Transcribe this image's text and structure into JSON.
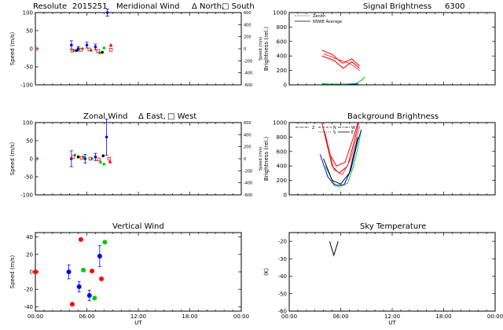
{
  "figure_title": {
    "station": "Resolute",
    "date": "2015251",
    "wavelength": "6300"
  },
  "chart_data": [
    {
      "id": "meridional",
      "type": "scatter",
      "title": "Meridional Wind",
      "legend_text": [
        "Δ North,",
        "□ South"
      ],
      "ylabel": "Speed (m/s)",
      "ylabel_right": "Speed (m/s)",
      "xlabel": "",
      "xlim": [
        0,
        24
      ],
      "ylim": [
        -100,
        100
      ],
      "yticks": [
        -100,
        -50,
        0,
        50,
        100
      ],
      "ylim_right": [
        -600,
        600
      ],
      "yticks_right": [
        -600,
        -400,
        -200,
        0,
        200,
        400,
        600
      ],
      "xticks": [
        0,
        6,
        12,
        18,
        24
      ],
      "xticklabels": [
        "",
        "",
        "",
        "",
        ""
      ],
      "series": [
        {
          "name": "blue",
          "color": "#0000ff",
          "points": [
            {
              "x": 4.2,
              "y": 10,
              "err": 12
            },
            {
              "x": 5.0,
              "y": 0,
              "err": 6
            },
            {
              "x": 6.0,
              "y": 10,
              "err": 8
            },
            {
              "x": 7.0,
              "y": 5,
              "err": 8
            },
            {
              "x": 8.4,
              "y": 100,
              "err": 10
            }
          ]
        },
        {
          "name": "green",
          "color": "#00cc00",
          "points": [
            {
              "x": 4.5,
              "y": -5
            },
            {
              "x": 5.5,
              "y": 0
            },
            {
              "x": 6.5,
              "y": -5
            },
            {
              "x": 7.5,
              "y": -12
            },
            {
              "x": 8.0,
              "y": 2
            }
          ]
        },
        {
          "name": "red-north",
          "color": "#ff0000",
          "marker": "triangle",
          "points": [
            {
              "x": 8.8,
              "y": 10
            }
          ]
        },
        {
          "name": "red-south",
          "color": "#ff0000",
          "marker": "square",
          "points": [
            {
              "x": 4.3,
              "y": -5
            },
            {
              "x": 5.3,
              "y": -3
            },
            {
              "x": 6.3,
              "y": -2
            },
            {
              "x": 7.3,
              "y": -6
            },
            {
              "x": 8.8,
              "y": -3
            }
          ]
        },
        {
          "name": "black",
          "color": "#000000",
          "points": [
            {
              "x": 4.8,
              "y": -5
            },
            {
              "x": 7.8,
              "y": -10
            }
          ]
        }
      ]
    },
    {
      "id": "zonal",
      "type": "scatter",
      "title": "Zonal Wind",
      "legend_text": [
        "Δ East,",
        "□ West"
      ],
      "ylabel": "Speed (m/s)",
      "ylabel_right": "Speed (m/s)",
      "xlabel": "",
      "xlim": [
        0,
        24
      ],
      "ylim": [
        -100,
        100
      ],
      "yticks": [
        -100,
        -50,
        0,
        50,
        100
      ],
      "ylim_right": [
        -600,
        600
      ],
      "yticks_right": [
        -600,
        -400,
        -200,
        0,
        200,
        400,
        600
      ],
      "xticks": [
        0,
        6,
        12,
        18,
        24
      ],
      "xticklabels": [
        "",
        "",
        "",
        "",
        ""
      ],
      "series": [
        {
          "name": "blue",
          "color": "#0000ff",
          "points": [
            {
              "x": 4.2,
              "y": 0,
              "err": 22
            },
            {
              "x": 5.8,
              "y": 0,
              "err": 12
            },
            {
              "x": 7.0,
              "y": 5,
              "err": 10
            },
            {
              "x": 8.3,
              "y": 60,
              "err": 50
            }
          ]
        },
        {
          "name": "green",
          "color": "#00cc00",
          "points": [
            {
              "x": 4.6,
              "y": 10
            },
            {
              "x": 5.6,
              "y": 5
            },
            {
              "x": 6.6,
              "y": 0
            },
            {
              "x": 7.6,
              "y": -10
            },
            {
              "x": 8.0,
              "y": -15
            }
          ]
        },
        {
          "name": "red-east",
          "color": "#ff0000",
          "marker": "triangle",
          "points": [
            {
              "x": 8.7,
              "y": -8
            }
          ]
        },
        {
          "name": "red-west",
          "color": "#ff0000",
          "marker": "square",
          "points": [
            {
              "x": 4.4,
              "y": 5
            },
            {
              "x": 5.4,
              "y": 2
            },
            {
              "x": 6.4,
              "y": 0
            },
            {
              "x": 7.4,
              "y": -2
            },
            {
              "x": 8.6,
              "y": 0
            }
          ]
        },
        {
          "name": "black",
          "color": "#000000",
          "points": [
            {
              "x": 5.0,
              "y": 5
            },
            {
              "x": 7.9,
              "y": 8
            }
          ]
        }
      ]
    },
    {
      "id": "vertical",
      "type": "scatter",
      "title": "Vertical Wind",
      "ylabel": "Speed (m/s)",
      "xlabel": "UT",
      "xlim": [
        0,
        24
      ],
      "ylim": [
        -45,
        45
      ],
      "yticks": [
        -40,
        -20,
        0,
        20,
        40
      ],
      "xticks": [
        0,
        6,
        12,
        18,
        24
      ],
      "xticklabels": [
        "00:00",
        "06:00",
        "12:00",
        "18:00",
        "00:00"
      ],
      "series": [
        {
          "name": "blue",
          "color": "#0000ff",
          "points": [
            {
              "x": 3.9,
              "y": 0,
              "err": 8
            },
            {
              "x": 5.1,
              "y": -17,
              "err": 6
            },
            {
              "x": 6.3,
              "y": -27,
              "err": 6
            },
            {
              "x": 7.5,
              "y": 18,
              "err": 12
            }
          ]
        },
        {
          "name": "green",
          "color": "#00cc00",
          "points": [
            {
              "x": 5.6,
              "y": 2
            },
            {
              "x": 6.9,
              "y": -30
            },
            {
              "x": 8.1,
              "y": 34
            }
          ]
        },
        {
          "name": "red",
          "color": "#ff0000",
          "points": [
            {
              "x": 0.0,
              "y": 0
            },
            {
              "x": 4.3,
              "y": -37
            },
            {
              "x": 5.3,
              "y": 37
            },
            {
              "x": 6.6,
              "y": 1
            },
            {
              "x": 7.7,
              "y": -8
            }
          ]
        }
      ]
    },
    {
      "id": "signal",
      "type": "line",
      "title": "Signal Brightness",
      "ylabel": "Brightness (rel.)",
      "xlabel": "",
      "xlim": [
        0,
        24
      ],
      "ylim": [
        0,
        1000
      ],
      "yticks": [
        0,
        200,
        400,
        600,
        800,
        1000
      ],
      "xticks": [
        0,
        6,
        12,
        18,
        24
      ],
      "xticklabels": [
        "",
        "",
        "",
        "",
        ""
      ],
      "legend": [
        "Zenith",
        "NSWE Average"
      ],
      "series": [
        {
          "name": "red-1",
          "color": "#ff0000",
          "points": [
            {
              "x": 3.8,
              "y": 480
            },
            {
              "x": 5.0,
              "y": 420
            },
            {
              "x": 6.2,
              "y": 300
            },
            {
              "x": 7.3,
              "y": 360
            },
            {
              "x": 8.2,
              "y": 260
            }
          ]
        },
        {
          "name": "red-2",
          "color": "#cc0000",
          "points": [
            {
              "x": 3.8,
              "y": 400
            },
            {
              "x": 5.2,
              "y": 340
            },
            {
              "x": 6.3,
              "y": 230
            },
            {
              "x": 7.3,
              "y": 320
            },
            {
              "x": 8.2,
              "y": 230
            }
          ]
        },
        {
          "name": "red-3",
          "color": "#ff3030",
          "points": [
            {
              "x": 4.0,
              "y": 430
            },
            {
              "x": 5.5,
              "y": 360
            },
            {
              "x": 7.0,
              "y": 300
            },
            {
              "x": 8.2,
              "y": 200
            }
          ]
        },
        {
          "name": "blue",
          "color": "#0000ff",
          "points": [
            {
              "x": 3.8,
              "y": 12
            },
            {
              "x": 5.0,
              "y": 8
            },
            {
              "x": 6.5,
              "y": 10
            },
            {
              "x": 8.0,
              "y": 12
            }
          ]
        },
        {
          "name": "green",
          "color": "#00cc00",
          "points": [
            {
              "x": 3.8,
              "y": 5
            },
            {
              "x": 6.0,
              "y": 4
            },
            {
              "x": 7.8,
              "y": 20
            },
            {
              "x": 8.5,
              "y": 70
            },
            {
              "x": 8.8,
              "y": 110
            }
          ]
        },
        {
          "name": "black",
          "color": "#000000",
          "points": [
            {
              "x": 3.8,
              "y": 0
            },
            {
              "x": 8.8,
              "y": 0
            }
          ]
        }
      ]
    },
    {
      "id": "background",
      "type": "line",
      "title": "Background Brightness",
      "ylabel": "Brightness (rel.)",
      "xlabel": "",
      "xlim": [
        0,
        24
      ],
      "ylim": [
        0,
        1000
      ],
      "yticks": [
        0,
        200,
        400,
        600,
        800,
        1000
      ],
      "xticks": [
        0,
        6,
        12,
        18,
        24
      ],
      "xticklabels": [
        "",
        "",
        "",
        "",
        ""
      ],
      "legend": [
        "Z",
        "N",
        "S",
        "W",
        "E"
      ],
      "series": [
        {
          "name": "red-1",
          "color": "#ff0000",
          "points": [
            {
              "x": 3.8,
              "y": 1000
            },
            {
              "x": 4.8,
              "y": 550
            },
            {
              "x": 5.5,
              "y": 400
            },
            {
              "x": 6.5,
              "y": 450
            },
            {
              "x": 7.5,
              "y": 800
            },
            {
              "x": 8.0,
              "y": 1000
            }
          ]
        },
        {
          "name": "red-2",
          "color": "#cc0000",
          "points": [
            {
              "x": 4.0,
              "y": 900
            },
            {
              "x": 5.0,
              "y": 400
            },
            {
              "x": 5.8,
              "y": 300
            },
            {
              "x": 6.8,
              "y": 400
            },
            {
              "x": 7.6,
              "y": 750
            },
            {
              "x": 8.1,
              "y": 1000
            }
          ]
        },
        {
          "name": "red-3",
          "color": "#ff4040",
          "points": [
            {
              "x": 4.2,
              "y": 850
            },
            {
              "x": 5.2,
              "y": 350
            },
            {
              "x": 6.2,
              "y": 280
            },
            {
              "x": 7.2,
              "y": 500
            },
            {
              "x": 8.2,
              "y": 950
            }
          ]
        },
        {
          "name": "green",
          "color": "#00dd00",
          "points": [
            {
              "x": 4.2,
              "y": 400
            },
            {
              "x": 5.2,
              "y": 160
            },
            {
              "x": 5.8,
              "y": 110
            },
            {
              "x": 6.8,
              "y": 160
            },
            {
              "x": 7.5,
              "y": 400
            },
            {
              "x": 8.0,
              "y": 650
            },
            {
              "x": 8.4,
              "y": 900
            }
          ]
        },
        {
          "name": "blue",
          "color": "#0000ff",
          "points": [
            {
              "x": 3.6,
              "y": 560
            },
            {
              "x": 4.5,
              "y": 250
            },
            {
              "x": 5.3,
              "y": 130
            },
            {
              "x": 6.4,
              "y": 140
            },
            {
              "x": 7.2,
              "y": 350
            },
            {
              "x": 8.0,
              "y": 750
            },
            {
              "x": 8.4,
              "y": 900
            }
          ]
        },
        {
          "name": "black",
          "color": "#000000",
          "points": [
            {
              "x": 4.0,
              "y": 500
            },
            {
              "x": 5.0,
              "y": 200
            },
            {
              "x": 6.0,
              "y": 150
            },
            {
              "x": 7.0,
              "y": 300
            },
            {
              "x": 8.0,
              "y": 800
            }
          ]
        }
      ]
    },
    {
      "id": "skytemp",
      "type": "line",
      "title": "Sky Temperature",
      "ylabel": "(K)",
      "xlabel": "UT",
      "xlim": [
        0,
        24
      ],
      "ylim": [
        -60,
        -15
      ],
      "yticks": [
        -60,
        -50,
        -40,
        -30,
        -20
      ],
      "xticks": [
        0,
        6,
        12,
        18,
        24
      ],
      "xticklabels": [
        "00:00",
        "06:00",
        "12:00",
        "18:00",
        "00:00"
      ],
      "series": [
        {
          "name": "black",
          "color": "#000000",
          "points": [
            {
              "x": 4.7,
              "y": -20
            },
            {
              "x": 5.2,
              "y": -28
            },
            {
              "x": 5.7,
              "y": -20
            }
          ]
        }
      ]
    }
  ]
}
